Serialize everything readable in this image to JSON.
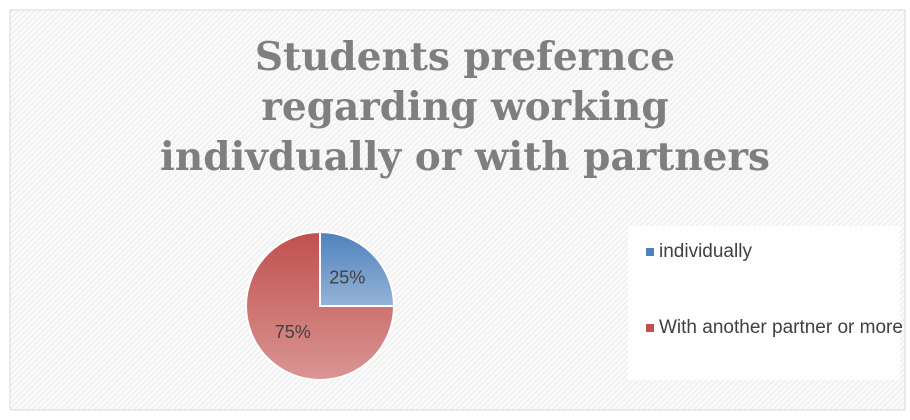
{
  "chart_data": {
    "type": "pie",
    "title": "Students prefernce regarding working indivdually or with partners",
    "categories": [
      "individually",
      "With another partner or more"
    ],
    "values": [
      25,
      75
    ],
    "value_labels": [
      "25%",
      "75%"
    ],
    "colors": [
      "#4f81bd",
      "#c0504d"
    ],
    "legend": "right"
  }
}
